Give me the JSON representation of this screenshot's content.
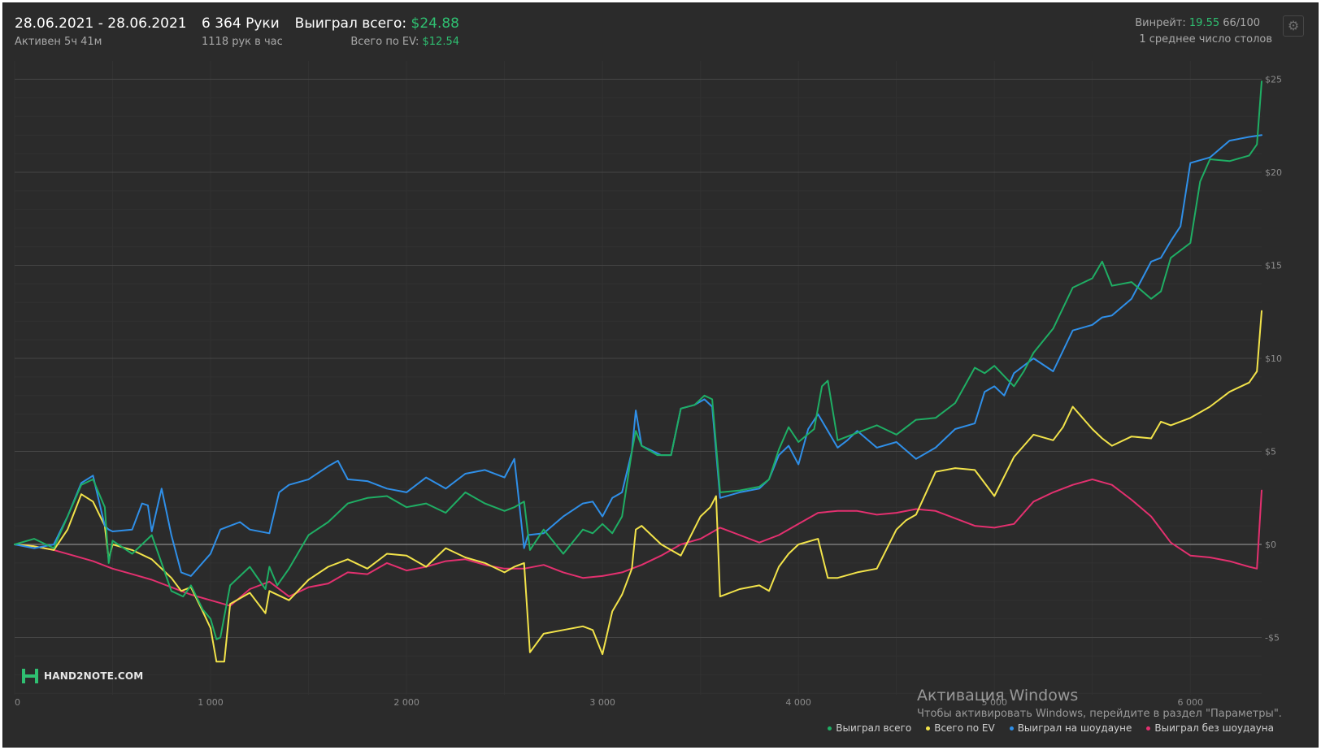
{
  "header": {
    "date_range": "28.06.2021 - 28.06.2021",
    "active": "Активен 5ч 41м",
    "hands": "6 364 Руки",
    "hands_per_hour": "1118 рук в час",
    "won_label": "Выиграл всего:",
    "won_value": "$24.88",
    "ev_label": "Всего по EV:",
    "ev_value": "$12.54",
    "winrate_label": "Винрейт:",
    "winrate_value": "19.55",
    "winrate_unit": "66/100",
    "tables": "1 среднее число столов"
  },
  "logo_text": "HAND2NOTE.COM",
  "watermark": {
    "line1": "Активация Windows",
    "line2": "Чтобы активировать Windows, перейдите в раздел \"Параметры\"."
  },
  "colors": {
    "background": "#2b2b2b",
    "grid": "#3c3c3c",
    "zero_line": "#8a8a8a",
    "won_total": "#1fae64",
    "ev_total": "#f2e34a",
    "showdown": "#2f8fe8",
    "non_showdown": "#e3306f",
    "accent_green": "#2fbf71"
  },
  "icons": {
    "settings": "gear-icon",
    "logo": "hand2note-logo-icon"
  },
  "chart_data": {
    "type": "line",
    "xlabel": "",
    "ylabel": "",
    "xlim": [
      0,
      6364
    ],
    "ylim": [
      -8,
      26
    ],
    "x_ticks": [
      {
        "value": 0,
        "label": "0"
      },
      {
        "value": 1000,
        "label": "1 000"
      },
      {
        "value": 2000,
        "label": "2 000"
      },
      {
        "value": 3000,
        "label": "3 000"
      },
      {
        "value": 4000,
        "label": "4 000"
      },
      {
        "value": 5000,
        "label": "5 000"
      },
      {
        "value": 6000,
        "label": "6 000"
      }
    ],
    "y_ticks": [
      {
        "value": -5,
        "label": "-$5"
      },
      {
        "value": 0,
        "label": "$0"
      },
      {
        "value": 5,
        "label": "$5"
      },
      {
        "value": 10,
        "label": "$10"
      },
      {
        "value": 15,
        "label": "$15"
      },
      {
        "value": 20,
        "label": "$20"
      },
      {
        "value": 25,
        "label": "$25"
      }
    ],
    "grid": true,
    "legend_position": "bottom-right",
    "series": [
      {
        "name": "Выиграл всего",
        "color": "#1fae64",
        "x": [
          0,
          100,
          200,
          270,
          340,
          400,
          460,
          480,
          500,
          600,
          700,
          800,
          860,
          900,
          960,
          1000,
          1030,
          1050,
          1100,
          1200,
          1280,
          1300,
          1340,
          1400,
          1500,
          1600,
          1700,
          1800,
          1900,
          2000,
          2100,
          2200,
          2300,
          2400,
          2500,
          2550,
          2600,
          2630,
          2700,
          2800,
          2900,
          2950,
          3000,
          3050,
          3100,
          3150,
          3170,
          3200,
          3280,
          3350,
          3400,
          3470,
          3520,
          3560,
          3600,
          3700,
          3800,
          3850,
          3900,
          3950,
          4000,
          4080,
          4120,
          4150,
          4200,
          4250,
          4300,
          4400,
          4500,
          4600,
          4700,
          4800,
          4900,
          4950,
          5000,
          5100,
          5150,
          5200,
          5300,
          5400,
          5500,
          5550,
          5600,
          5700,
          5800,
          5850,
          5900,
          6000,
          6050,
          6100,
          6200,
          6300,
          6340,
          6364
        ],
        "y": [
          0,
          0.3,
          -0.2,
          1.5,
          3.2,
          3.5,
          2,
          -1,
          0.2,
          -0.5,
          0.5,
          -2.5,
          -2.8,
          -2.2,
          -3.5,
          -4,
          -5.1,
          -5,
          -2.2,
          -1.2,
          -2.4,
          -1.2,
          -2.2,
          -1.3,
          0.5,
          1.2,
          2.2,
          2.5,
          2.6,
          2,
          2.2,
          1.7,
          2.8,
          2.2,
          1.8,
          2,
          2.3,
          -0.3,
          0.8,
          -0.5,
          0.8,
          0.6,
          1.1,
          0.6,
          1.5,
          5,
          6.1,
          5.3,
          4.8,
          4.8,
          7.3,
          7.5,
          8,
          7.8,
          2.8,
          2.9,
          3.1,
          3.5,
          5.1,
          6.3,
          5.5,
          6.2,
          8.5,
          8.8,
          5.6,
          5.8,
          6,
          6.4,
          5.9,
          6.7,
          6.8,
          7.6,
          9.5,
          9.2,
          9.6,
          8.5,
          9.3,
          10.3,
          11.6,
          13.8,
          14.3,
          15.2,
          13.9,
          14.1,
          13.2,
          13.6,
          15.4,
          16.2,
          19.5,
          20.7,
          20.6,
          20.9,
          21.5,
          24.88
        ]
      },
      {
        "name": "Всего по EV",
        "color": "#f2e34a",
        "x": [
          0,
          100,
          200,
          270,
          340,
          400,
          460,
          480,
          500,
          600,
          700,
          800,
          850,
          900,
          960,
          1000,
          1030,
          1070,
          1100,
          1200,
          1280,
          1300,
          1400,
          1500,
          1600,
          1700,
          1800,
          1900,
          2000,
          2100,
          2200,
          2300,
          2400,
          2500,
          2550,
          2600,
          2630,
          2700,
          2800,
          2900,
          2950,
          3000,
          3050,
          3100,
          3150,
          3170,
          3200,
          3300,
          3400,
          3500,
          3550,
          3580,
          3600,
          3700,
          3800,
          3850,
          3900,
          3950,
          4000,
          4100,
          4150,
          4200,
          4300,
          4400,
          4500,
          4550,
          4600,
          4700,
          4800,
          4900,
          4950,
          5000,
          5100,
          5200,
          5300,
          5350,
          5400,
          5500,
          5550,
          5600,
          5700,
          5800,
          5850,
          5900,
          6000,
          6100,
          6200,
          6300,
          6340,
          6364
        ],
        "y": [
          0,
          -0.1,
          -0.3,
          0.8,
          2.7,
          2.3,
          1,
          -0.8,
          0,
          -0.3,
          -0.8,
          -1.8,
          -2.5,
          -2.3,
          -3.6,
          -4.5,
          -6.3,
          -6.3,
          -3.2,
          -2.6,
          -3.7,
          -2.5,
          -3,
          -1.9,
          -1.2,
          -0.8,
          -1.3,
          -0.5,
          -0.6,
          -1.2,
          -0.2,
          -0.7,
          -1,
          -1.5,
          -1.2,
          -1,
          -5.8,
          -4.8,
          -4.6,
          -4.4,
          -4.6,
          -5.9,
          -3.6,
          -2.7,
          -1.3,
          0.8,
          1,
          0,
          -0.6,
          1.5,
          2,
          2.6,
          -2.8,
          -2.4,
          -2.2,
          -2.5,
          -1.2,
          -0.5,
          0,
          0.3,
          -1.8,
          -1.8,
          -1.5,
          -1.3,
          0.8,
          1.3,
          1.6,
          3.9,
          4.1,
          4,
          3.3,
          2.6,
          4.7,
          5.9,
          5.6,
          6.3,
          7.4,
          6.2,
          5.7,
          5.3,
          5.8,
          5.7,
          6.6,
          6.4,
          6.8,
          7.4,
          8.2,
          8.7,
          9.3,
          12.54
        ]
      },
      {
        "name": "Выиграл на шоудауне",
        "color": "#2f8fe8",
        "x": [
          0,
          100,
          200,
          270,
          340,
          400,
          460,
          480,
          500,
          600,
          650,
          680,
          700,
          750,
          800,
          850,
          900,
          1000,
          1050,
          1100,
          1150,
          1200,
          1300,
          1350,
          1400,
          1500,
          1600,
          1650,
          1700,
          1800,
          1900,
          2000,
          2100,
          2200,
          2300,
          2400,
          2500,
          2550,
          2600,
          2620,
          2700,
          2800,
          2900,
          2950,
          3000,
          3050,
          3100,
          3150,
          3170,
          3200,
          3300,
          3350,
          3400,
          3470,
          3520,
          3560,
          3600,
          3700,
          3800,
          3850,
          3900,
          3950,
          4000,
          4050,
          4100,
          4200,
          4250,
          4300,
          4400,
          4500,
          4600,
          4700,
          4800,
          4900,
          4950,
          5000,
          5050,
          5100,
          5200,
          5300,
          5400,
          5500,
          5550,
          5600,
          5700,
          5800,
          5850,
          5900,
          5950,
          6000,
          6100,
          6200,
          6300,
          6364
        ],
        "y": [
          0,
          -0.2,
          0,
          1.5,
          3.3,
          3.7,
          1,
          0.8,
          0.7,
          0.8,
          2.2,
          2.1,
          0.7,
          3,
          0.5,
          -1.5,
          -1.7,
          -0.5,
          0.8,
          1,
          1.2,
          0.8,
          0.6,
          2.8,
          3.2,
          3.5,
          4.2,
          4.5,
          3.5,
          3.4,
          3,
          2.8,
          3.6,
          3,
          3.8,
          4,
          3.6,
          4.6,
          -0.2,
          0.5,
          0.6,
          1.5,
          2.2,
          2.3,
          1.5,
          2.5,
          2.8,
          5,
          7.2,
          5.3,
          4.8,
          4.8,
          7.3,
          7.5,
          7.8,
          7.4,
          2.5,
          2.8,
          3,
          3.5,
          4.8,
          5.3,
          4.3,
          6.2,
          7,
          5.2,
          5.6,
          6.1,
          5.2,
          5.5,
          4.6,
          5.2,
          6.2,
          6.5,
          8.2,
          8.5,
          8,
          9.2,
          10,
          9.3,
          11.5,
          11.8,
          12.2,
          12.3,
          13.2,
          15.2,
          15.4,
          16.3,
          17.1,
          20.5,
          20.8,
          21.7,
          21.9,
          22
        ]
      },
      {
        "name": "Выиграл без шоудауна",
        "color": "#e3306f",
        "x": [
          0,
          100,
          200,
          300,
          400,
          500,
          600,
          700,
          800,
          900,
          1000,
          1100,
          1200,
          1300,
          1400,
          1500,
          1600,
          1700,
          1800,
          1900,
          2000,
          2100,
          2200,
          2300,
          2400,
          2500,
          2600,
          2700,
          2800,
          2900,
          3000,
          3100,
          3200,
          3300,
          3400,
          3500,
          3600,
          3700,
          3800,
          3900,
          4000,
          4100,
          4200,
          4300,
          4400,
          4500,
          4600,
          4700,
          4800,
          4900,
          5000,
          5100,
          5200,
          5300,
          5400,
          5500,
          5600,
          5700,
          5800,
          5900,
          6000,
          6100,
          6200,
          6300,
          6340,
          6364
        ],
        "y": [
          0,
          -0.1,
          -0.3,
          -0.6,
          -0.9,
          -1.3,
          -1.6,
          -1.9,
          -2.3,
          -2.7,
          -3,
          -3.3,
          -2.4,
          -2,
          -2.8,
          -2.3,
          -2.1,
          -1.5,
          -1.6,
          -1,
          -1.4,
          -1.2,
          -0.9,
          -0.8,
          -1.1,
          -1.3,
          -1.3,
          -1.1,
          -1.5,
          -1.8,
          -1.7,
          -1.5,
          -1.1,
          -0.6,
          0,
          0.3,
          0.9,
          0.5,
          0.1,
          0.5,
          1.1,
          1.7,
          1.8,
          1.8,
          1.6,
          1.7,
          1.9,
          1.8,
          1.4,
          1,
          0.9,
          1.1,
          2.3,
          2.8,
          3.2,
          3.5,
          3.2,
          2.4,
          1.5,
          0.1,
          -0.6,
          -0.7,
          -0.9,
          -1.2,
          -1.3,
          2.9
        ]
      }
    ]
  }
}
